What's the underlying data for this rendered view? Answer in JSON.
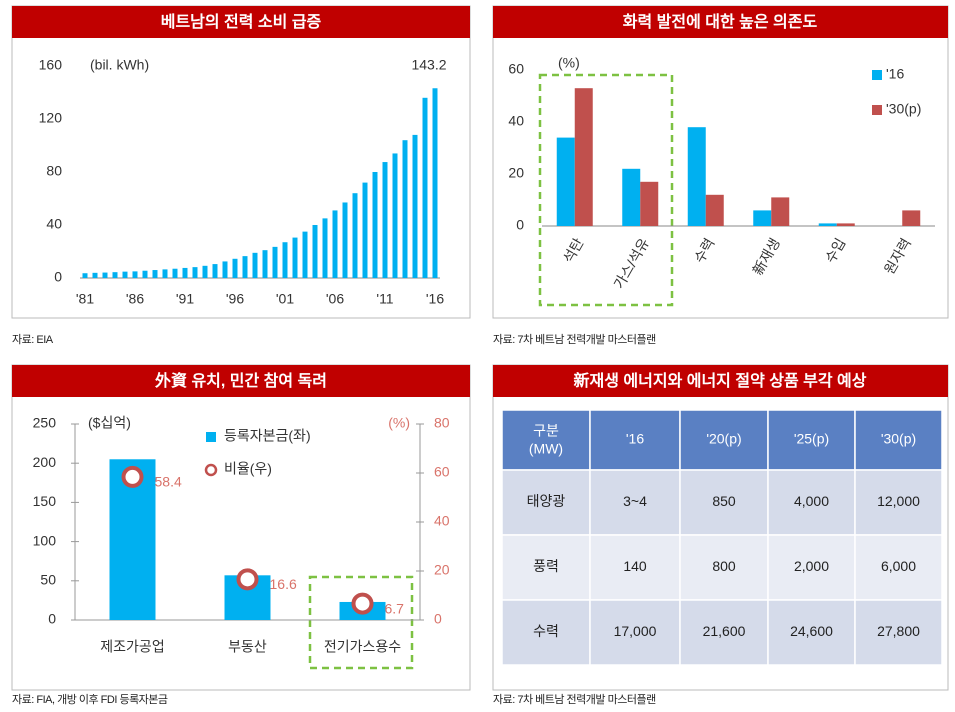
{
  "chart_data": [
    {
      "type": "bar",
      "title": "베트남의 전력 소비 급증",
      "y_label": "(bil. kWh)",
      "source": "자료: EIA",
      "color": "#00b0f0",
      "categories": [
        "'81",
        null,
        null,
        null,
        null,
        "'86",
        null,
        null,
        null,
        null,
        "'91",
        null,
        null,
        null,
        null,
        "'96",
        null,
        null,
        null,
        null,
        "'01",
        null,
        null,
        null,
        null,
        "'06",
        null,
        null,
        null,
        null,
        "'11",
        null,
        null,
        null,
        null,
        "'16"
      ],
      "values": [
        3.6,
        3.9,
        4.1,
        4.4,
        4.8,
        5.0,
        5.5,
        6.0,
        6.5,
        7.0,
        7.6,
        8.2,
        9.2,
        10.5,
        12.5,
        14.5,
        16.5,
        19.0,
        21.0,
        23.5,
        27.0,
        30.5,
        35.0,
        40.0,
        45.0,
        51.0,
        57.0,
        64.0,
        72.0,
        80.0,
        87.5,
        94.0,
        104.0,
        108.0,
        136.0,
        143.2
      ],
      "ylim": [
        0,
        160
      ],
      "yticks": [
        0,
        40,
        80,
        120,
        160
      ]
    },
    {
      "type": "grouped_bar",
      "title": "화력 발전에 대한 높은 의존도",
      "y_label": "(%)",
      "source": "자료: 7차 베트남 전력개발 마스터플랜",
      "categories": [
        "석탄",
        "가스/석유",
        "수력",
        "新재생",
        "수입",
        "원자력"
      ],
      "series": [
        {
          "name": "'16",
          "color": "#00b0f0",
          "values": [
            34,
            22,
            38,
            6,
            1,
            0
          ]
        },
        {
          "name": "'30(p)",
          "color": "#c0504d",
          "values": [
            53,
            17,
            12,
            11,
            1,
            6
          ]
        }
      ],
      "ylim": [
        0,
        60
      ],
      "yticks": [
        0,
        20,
        40,
        60
      ],
      "legend": "top-right"
    },
    {
      "type": "combo",
      "title": "外資 유치, 민간 참여 독려",
      "y_label": "($십억)",
      "y2_label": "(%)",
      "source": "자료: FIA, 개방 이후 FDI 등록자본금",
      "categories": [
        "제조가공업",
        "부동산",
        "전기가스용수"
      ],
      "series": [
        {
          "name": "등록자본금(좌)",
          "color": "#00b0f0",
          "values": [
            205,
            57,
            23
          ]
        },
        {
          "name": "비율(우)",
          "color": "#c0504d",
          "axis": "y2",
          "values": [
            58.4,
            16.6,
            6.7
          ]
        }
      ],
      "ylim": [
        0,
        250
      ],
      "yticks": [
        0,
        50,
        100,
        150,
        200,
        250
      ],
      "y2lim": [
        0,
        80
      ],
      "y2ticks": [
        0,
        20,
        40,
        60,
        80
      ],
      "legend": "top-center"
    }
  ],
  "table_panel": {
    "title": "新재생 에너지와 에너지 절약 상품 부각 예상",
    "source": "자료: 7차 베트남 전력개발 마스터플랜",
    "header": [
      "구분",
      "'16",
      "'20(p)",
      "'25(p)",
      "'30(p)"
    ],
    "header_unit": "(MW)",
    "rows": [
      [
        "태양광",
        "3~4",
        "850",
        "4,000",
        "12,000"
      ],
      [
        "풍력",
        "140",
        "800",
        "2,000",
        "6,000"
      ],
      [
        "수력",
        "17,000",
        "21,600",
        "24,600",
        "27,800"
      ]
    ]
  }
}
